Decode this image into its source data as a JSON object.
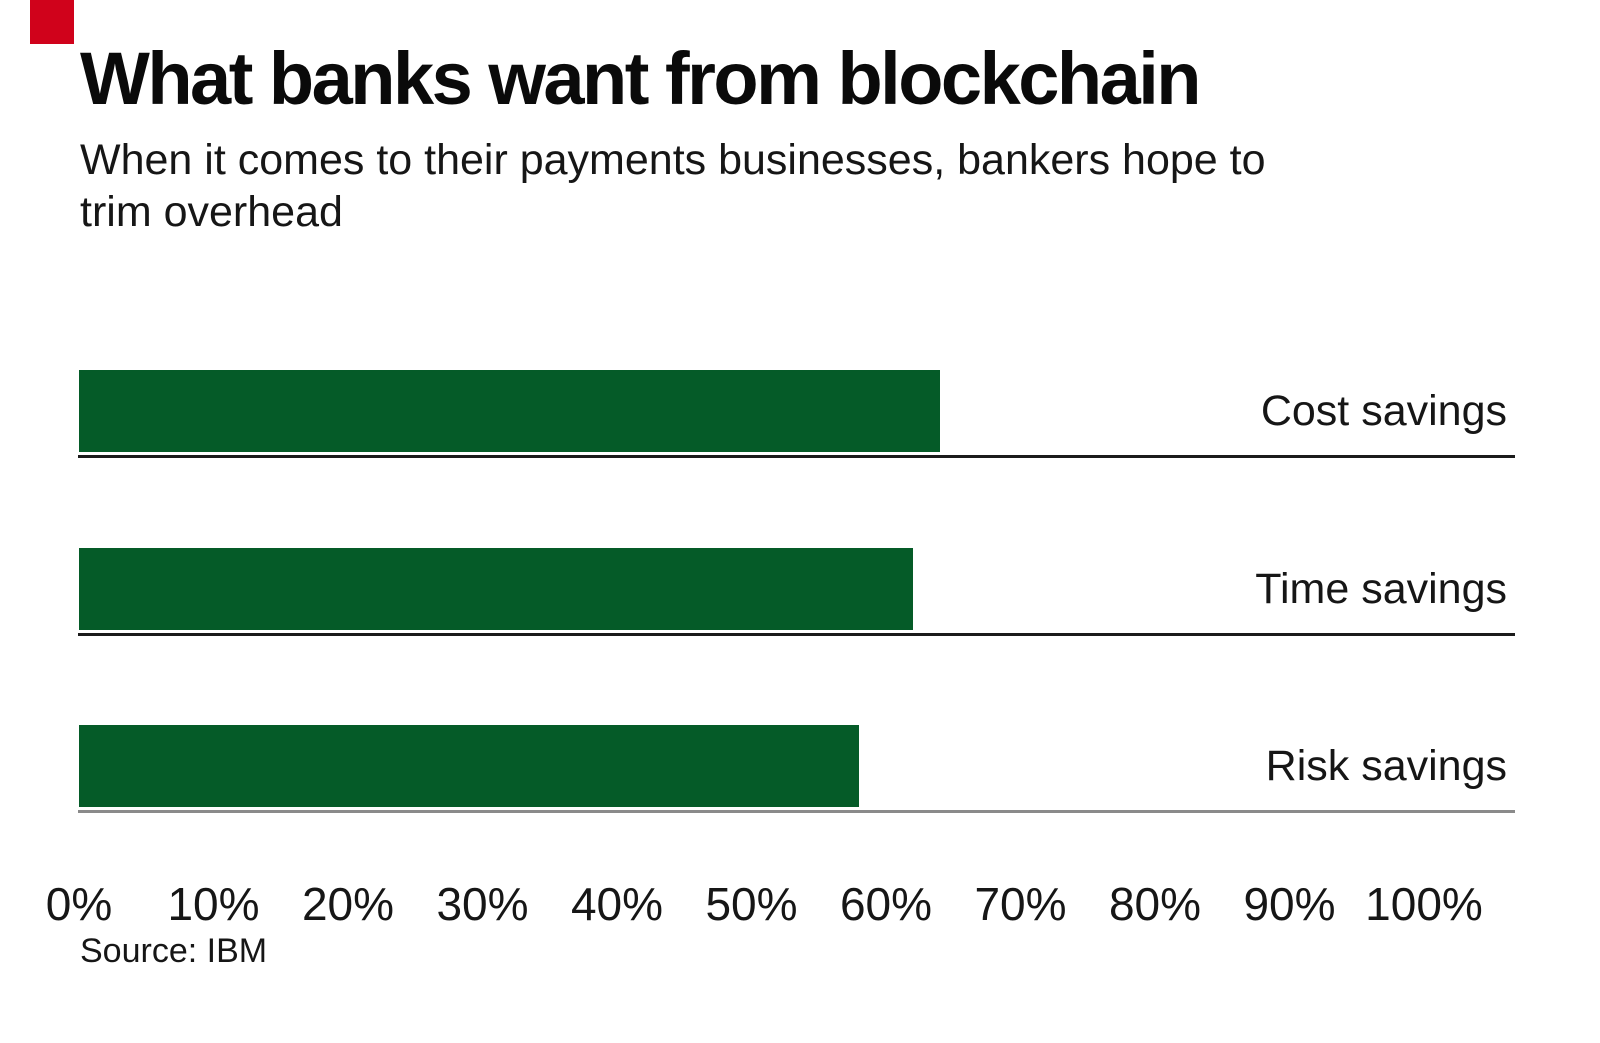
{
  "brand": {
    "mark_color": "#d0021b"
  },
  "header": {
    "title": "What banks want from blockchain",
    "subtitle_line1": "When it comes to their payments businesses, bankers hope to",
    "subtitle_line2": "trim overhead"
  },
  "chart_data": {
    "type": "bar",
    "orientation": "horizontal",
    "title": "What banks want from blockchain",
    "subtitle": "When it comes to their payments businesses, bankers hope to trim overhead",
    "categories": [
      "Cost savings",
      "Time savings",
      "Risk savings"
    ],
    "values": [
      64,
      62,
      58
    ],
    "unit": "%",
    "xlabel": "",
    "ylabel": "",
    "xlim": [
      0,
      100
    ],
    "x_ticks": [
      "0%",
      "10%",
      "20%",
      "30%",
      "40%",
      "50%",
      "60%",
      "70%",
      "80%",
      "90%",
      "100%"
    ],
    "grid": false,
    "legend": false,
    "bar_color": "#055b28",
    "divider_color": "#1b1b1b",
    "baseline_color": "#8a8a8a",
    "label_position": "right"
  },
  "footer": {
    "source": "Source: IBM"
  }
}
